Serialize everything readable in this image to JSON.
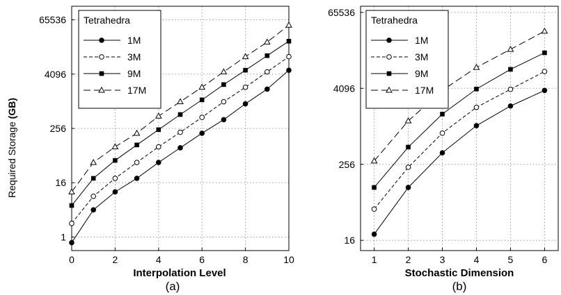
{
  "ylabel_prefix": "Required Storage ",
  "ylabel_bold": "(GB)",
  "chart_data": [
    {
      "type": "line",
      "caption": "(a)",
      "xlabel": "Interpolation Level",
      "ylabel": "Required Storage (GB)",
      "yscale": "log2",
      "xlim": [
        0,
        10
      ],
      "ylim": [
        0.5,
        131072
      ],
      "x": [
        0,
        1,
        2,
        3,
        4,
        5,
        6,
        7,
        8,
        9,
        10
      ],
      "xticks": [
        0,
        2,
        4,
        6,
        8,
        10
      ],
      "yticks": [
        1,
        16,
        256,
        4096,
        65536
      ],
      "legend_title": "Tetrahedra",
      "legend_position": "top-left",
      "grid": true,
      "series": [
        {
          "name": "1M",
          "marker": "filled-circle",
          "line": "solid",
          "values": [
            0.75,
            4,
            10,
            20,
            45,
            95,
            200,
            400,
            900,
            1900,
            5000
          ]
        },
        {
          "name": "3M",
          "marker": "open-circle",
          "line": "dashed",
          "values": [
            2,
            8,
            20,
            45,
            100,
            210,
            450,
            1000,
            2100,
            4600,
            10000
          ]
        },
        {
          "name": "9M",
          "marker": "filled-square",
          "line": "solid",
          "values": [
            5,
            20,
            50,
            110,
            240,
            520,
            1100,
            2400,
            5000,
            10500,
            22000
          ]
        },
        {
          "name": "17M",
          "marker": "open-triangle",
          "line": "long-dashed",
          "values": [
            10,
            45,
            100,
            200,
            480,
            1000,
            2100,
            4600,
            10000,
            21000,
            50000
          ]
        }
      ]
    },
    {
      "type": "line",
      "caption": "(b)",
      "xlabel": "Stochastic Dimension",
      "ylabel": "Required Storage (GB)",
      "yscale": "log2",
      "xlim": [
        0.6,
        6.4
      ],
      "ylim": [
        11,
        82000
      ],
      "x": [
        1,
        2,
        3,
        4,
        5,
        6
      ],
      "xticks": [
        1,
        2,
        3,
        4,
        5,
        6
      ],
      "yticks": [
        16,
        256,
        4096,
        65536
      ],
      "legend_title": "Tetrahedra",
      "legend_position": "top-left",
      "grid": true,
      "series": [
        {
          "name": "1M",
          "marker": "filled-circle",
          "line": "solid",
          "values": [
            20,
            110,
            390,
            1050,
            2150,
            3800
          ]
        },
        {
          "name": "3M",
          "marker": "open-circle",
          "line": "dashed",
          "values": [
            50,
            230,
            800,
            2050,
            3950,
            7600
          ]
        },
        {
          "name": "9M",
          "marker": "filled-square",
          "line": "solid",
          "values": [
            110,
            480,
            1600,
            4000,
            8200,
            15000
          ]
        },
        {
          "name": "17M",
          "marker": "open-triangle",
          "line": "long-dashed",
          "values": [
            290,
            1250,
            3800,
            8800,
            17000,
            33000
          ]
        }
      ]
    }
  ]
}
